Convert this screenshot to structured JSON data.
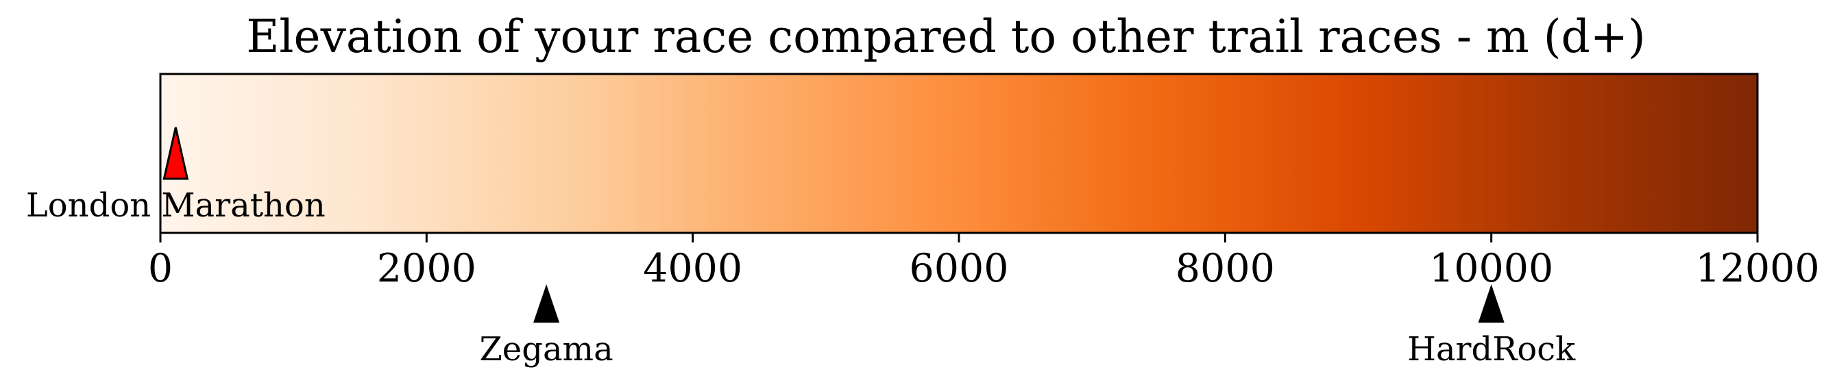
{
  "chart_data": {
    "type": "colorbar-scale",
    "title": "Elevation of your race compared to other trail races - m (d+)",
    "xlim": [
      0,
      12000
    ],
    "ticks": [
      0,
      2000,
      4000,
      6000,
      8000,
      10000,
      12000
    ],
    "tick_labels": [
      "0",
      "2000",
      "4000",
      "6000",
      "8000",
      "10000",
      "12000"
    ],
    "colormap": {
      "name": "Oranges",
      "stops": [
        "#fff5eb",
        "#fee6ce",
        "#fdd0a2",
        "#fdae6b",
        "#fd8d3c",
        "#f16913",
        "#d94801",
        "#a63603",
        "#7f2704"
      ]
    },
    "your_race": {
      "name": "London Marathon",
      "value": 115,
      "marker_color": "#ff0000"
    },
    "reference_races": [
      {
        "name": "Zegama",
        "value": 2900
      },
      {
        "name": "HardRock",
        "value": 10000
      }
    ]
  }
}
